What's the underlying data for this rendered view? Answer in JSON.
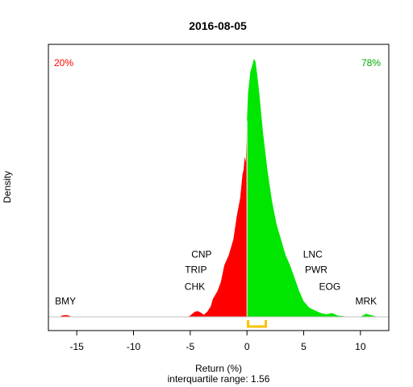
{
  "chart_data": {
    "type": "area",
    "title": "2016-08-05",
    "xlabel": "Return (%)",
    "ylabel": "Density",
    "subtitle": "interquartile range: 1.56",
    "xlim": [
      -17.5,
      12.5
    ],
    "xticks": [
      -15,
      -10,
      -5,
      0,
      5,
      10
    ],
    "xtick_labels": [
      "-15",
      "-10",
      "-5",
      "0",
      "5",
      "10"
    ],
    "ylim": [
      0,
      1.0
    ],
    "negative_share_label": "20%",
    "positive_share_label": "78%",
    "colors": {
      "negative": "#ff0000",
      "positive": "#00e600",
      "iqr_bracket": "#ffc000",
      "baseline": "#c0c0c0"
    },
    "iqr": [
      0.1,
      1.66
    ],
    "density": {
      "x": [
        -17.0,
        -16.5,
        -16.3,
        -16.0,
        -15.7,
        -15.5,
        -15.0,
        -10.0,
        -5.2,
        -5.0,
        -4.6,
        -4.3,
        -4.0,
        -3.8,
        -3.5,
        -3.2,
        -3.0,
        -2.6,
        -2.3,
        -2.0,
        -1.6,
        -1.2,
        -0.9,
        -0.6,
        -0.4,
        -0.3,
        -0.2,
        -0.1,
        0.0,
        0.1,
        0.3,
        0.5,
        0.6,
        0.75,
        0.9,
        1.1,
        1.4,
        1.8,
        2.2,
        2.6,
        3.0,
        3.4,
        3.8,
        4.2,
        4.6,
        5.0,
        5.5,
        6.0,
        6.5,
        7.0,
        7.5,
        8.0,
        9.0,
        10.0,
        10.5,
        11.0,
        11.5,
        12.0
      ],
      "y": [
        0.0,
        0.0,
        0.005,
        0.007,
        0.005,
        0.0,
        0.0,
        0.0,
        0.0,
        0.005,
        0.02,
        0.022,
        0.015,
        0.008,
        0.02,
        0.04,
        0.07,
        0.1,
        0.135,
        0.2,
        0.24,
        0.3,
        0.39,
        0.46,
        0.55,
        0.57,
        0.62,
        0.6,
        0.76,
        0.87,
        0.95,
        0.98,
        1.0,
        0.99,
        0.94,
        0.86,
        0.72,
        0.57,
        0.45,
        0.36,
        0.3,
        0.24,
        0.2,
        0.15,
        0.1,
        0.06,
        0.035,
        0.025,
        0.015,
        0.01,
        0.015,
        0.005,
        0.0,
        0.0,
        0.012,
        0.006,
        0.0,
        0.0
      ]
    },
    "annotations": [
      {
        "label": "BMY",
        "x": -16.0,
        "level": 0.048
      },
      {
        "label": "CNP",
        "x": -4.0,
        "level": 0.23
      },
      {
        "label": "TRIP",
        "x": -4.5,
        "level": 0.17
      },
      {
        "label": "CHK",
        "x": -4.6,
        "level": 0.105
      },
      {
        "label": "LNC",
        "x": 5.8,
        "level": 0.23
      },
      {
        "label": "PWR",
        "x": 6.1,
        "level": 0.17
      },
      {
        "label": "EOG",
        "x": 7.3,
        "level": 0.105
      },
      {
        "label": "MRK",
        "x": 10.5,
        "level": 0.048
      }
    ]
  }
}
